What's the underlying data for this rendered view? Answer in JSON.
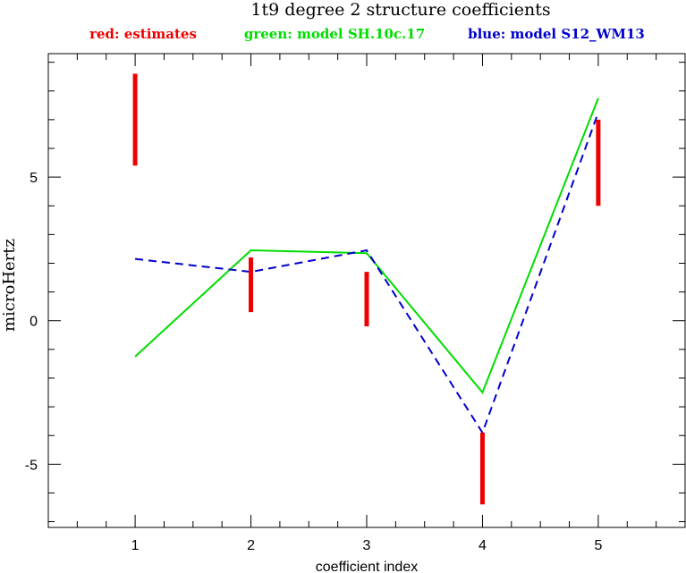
{
  "chart_data": {
    "type": "line",
    "title": "1t9 degree 2 structure coefficients",
    "xlabel": "coefficient index",
    "ylabel": "microHertz",
    "xlim": [
      0.25,
      5.75
    ],
    "ylim": [
      -7.2,
      9.3
    ],
    "x_ticks": [
      1,
      2,
      3,
      4,
      5
    ],
    "y_ticks": [
      -5,
      0,
      5
    ],
    "grid": false,
    "legend": [
      {
        "label": "red: estimates",
        "color": "#ee0000"
      },
      {
        "label": "green: model SH.10c.17",
        "color": "#00dd00"
      },
      {
        "label": "blue: model S12_WM13",
        "color": "#0000cc"
      }
    ],
    "estimates": {
      "color": "#ee0000",
      "x": [
        1,
        2,
        3,
        4,
        5
      ],
      "lower": [
        5.4,
        0.3,
        -0.2,
        -6.4,
        4.0
      ],
      "upper": [
        8.6,
        2.2,
        1.7,
        -3.9,
        7.0
      ]
    },
    "series": [
      {
        "color": "#00dd00",
        "style": "solid",
        "x": [
          1,
          2,
          3,
          4,
          5
        ],
        "values": [
          -1.25,
          2.45,
          2.35,
          -2.5,
          7.75
        ]
      },
      {
        "color": "#0000cc",
        "style": "dashed",
        "x": [
          1,
          2,
          3,
          4,
          5
        ],
        "values": [
          2.15,
          1.7,
          2.45,
          -3.9,
          7.25
        ]
      }
    ]
  }
}
